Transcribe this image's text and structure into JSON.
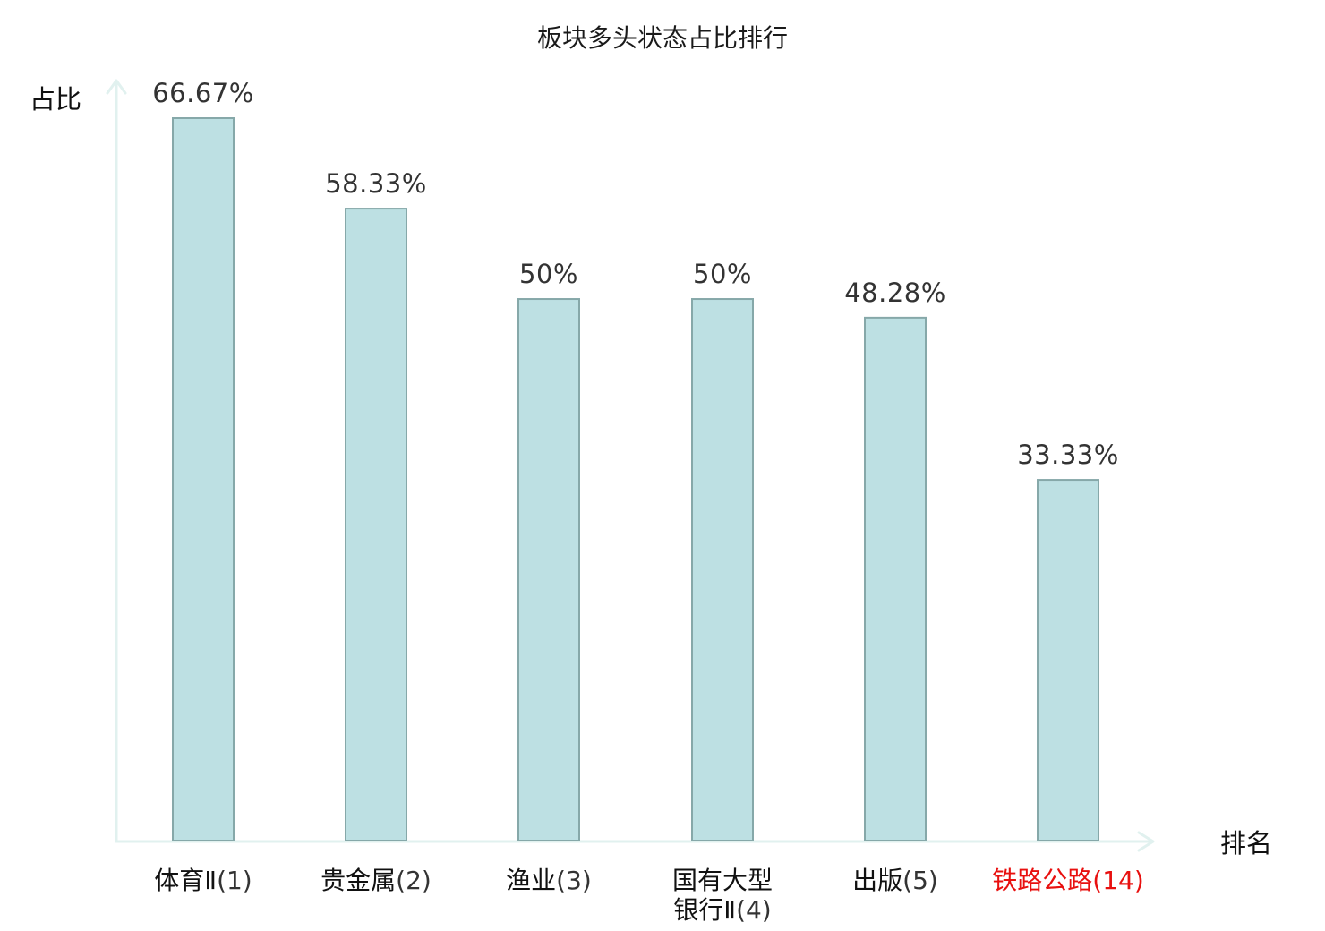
{
  "chart_data": {
    "type": "bar",
    "title": "板块多头状态占比排行",
    "xlabel": "排名",
    "ylabel": "占比",
    "categories": [
      {
        "name": "体育Ⅱ",
        "rank": "(1)",
        "highlight": false
      },
      {
        "name": "贵金属",
        "rank": "(2)",
        "highlight": false
      },
      {
        "name": "渔业",
        "rank": "(3)",
        "highlight": false
      },
      {
        "name": "国有大型银行Ⅱ",
        "rank": "(4)",
        "highlight": false
      },
      {
        "name": "出版",
        "rank": "(5)",
        "highlight": false
      },
      {
        "name": "铁路公路",
        "rank": "(14)",
        "highlight": true
      }
    ],
    "values": [
      66.67,
      58.33,
      50,
      50,
      48.28,
      33.33
    ],
    "value_labels": [
      "66.67%",
      "58.33%",
      "50%",
      "50%",
      "48.28%",
      "33.33%"
    ],
    "ylim": [
      0,
      70
    ],
    "grid": false,
    "legend": "none"
  },
  "colors": {
    "bar_fill": "#bde0e3",
    "bar_stroke": "#86a8a9",
    "axis": "#e1f1ef",
    "highlight_text": "#e8100f",
    "normal_text": "#111111",
    "normal_rank_text": "#333333",
    "value_text": "#333333"
  }
}
